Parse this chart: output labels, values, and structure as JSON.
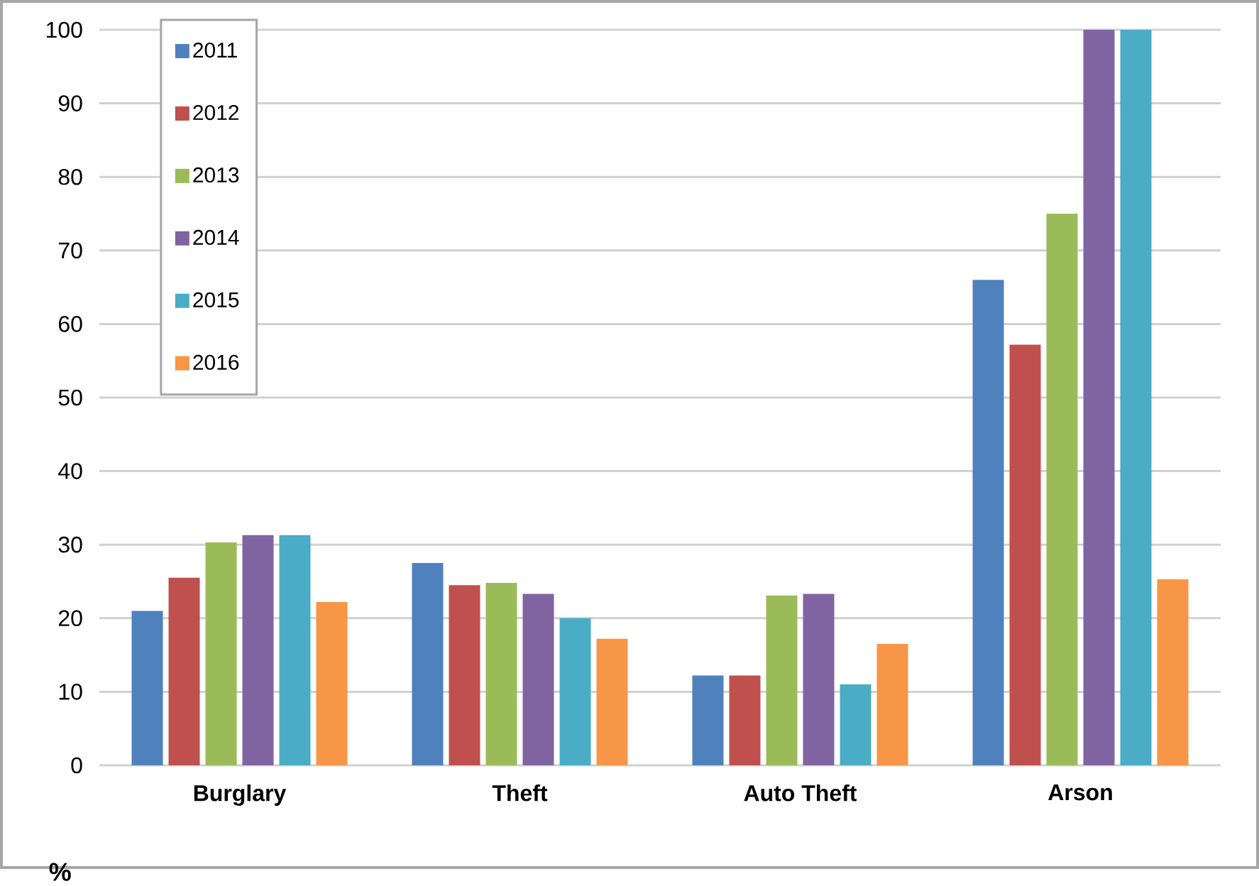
{
  "chart_data": {
    "type": "bar",
    "ylabel": "%",
    "categories": [
      "Burglary",
      "Theft",
      "Auto Theft",
      "Arson"
    ],
    "series": [
      {
        "name": "2011",
        "color": "#4f81bd",
        "values": [
          21.0,
          27.5,
          12.2,
          66.0
        ]
      },
      {
        "name": "2012",
        "color": "#c0504d",
        "values": [
          25.5,
          24.5,
          12.2,
          57.2
        ]
      },
      {
        "name": "2013",
        "color": "#9bbb59",
        "values": [
          30.3,
          24.8,
          23.1,
          75.0
        ]
      },
      {
        "name": "2014",
        "color": "#8064a2",
        "values": [
          31.3,
          23.3,
          23.3,
          100
        ]
      },
      {
        "name": "2015",
        "color": "#4bacc6",
        "values": [
          31.3,
          20.0,
          11.0,
          100
        ]
      },
      {
        "name": "2016",
        "color": "#f79646",
        "values": [
          22.2,
          17.2,
          16.5,
          25.3
        ]
      }
    ],
    "ylim": [
      0,
      100
    ],
    "yticks": [
      0,
      10,
      20,
      30,
      40,
      50,
      60,
      70,
      80,
      90,
      100
    ],
    "grid": "y",
    "legend": "top left"
  }
}
